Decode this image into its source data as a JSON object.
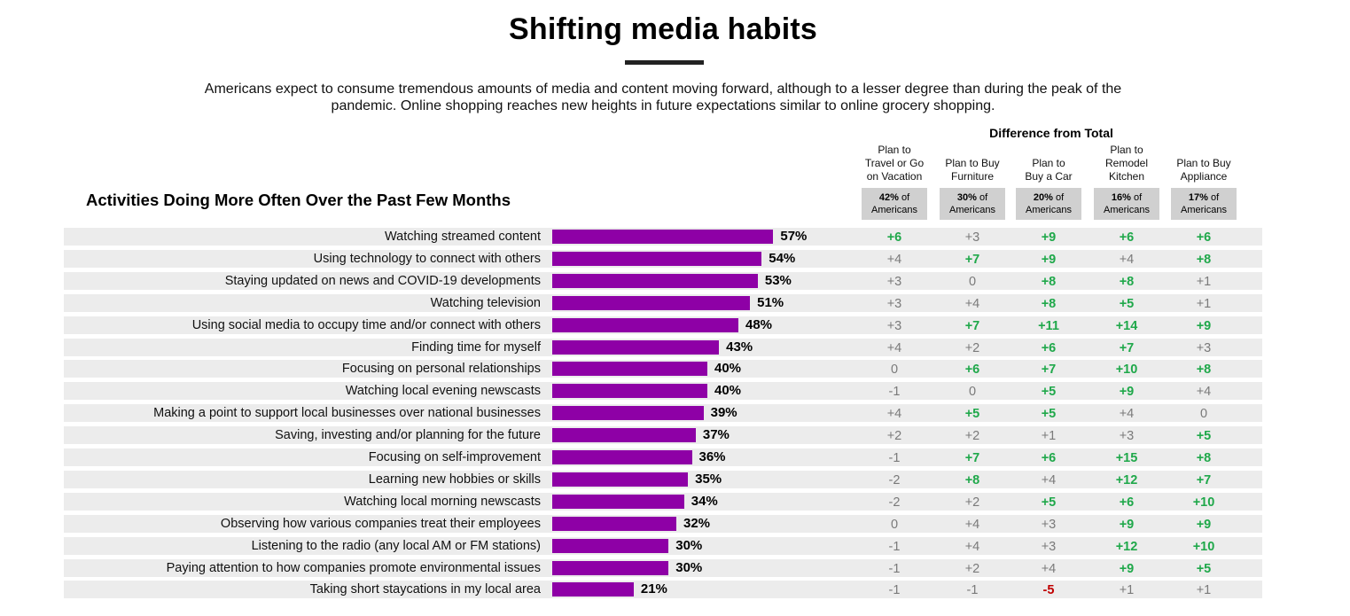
{
  "title": "Shifting media habits",
  "subtitle": "Americans expect to consume tremendous amounts of media and content moving forward, although to a lesser degree than during the peak of the pandemic. Online shopping reaches new heights in future expectations similar to online grocery shopping.",
  "section_title": "Activities Doing More Often Over the Past Few Months",
  "difference_title": "Difference from Total",
  "colors": {
    "bar": "#8e00a6",
    "positive": "#1fa84a",
    "negative": "#c00000",
    "neutral": "#7a7a7a"
  },
  "columns": [
    {
      "label_lines": [
        "Plan to",
        "Travel or Go",
        "on Vacation"
      ],
      "share_value": "42%",
      "share_suffix": " of",
      "share_unit": "Americans"
    },
    {
      "label_lines": [
        "Plan to Buy",
        "Furniture"
      ],
      "share_value": "30%",
      "share_suffix": " of",
      "share_unit": "Americans"
    },
    {
      "label_lines": [
        "Plan to",
        "Buy a Car"
      ],
      "share_value": "20%",
      "share_suffix": " of",
      "share_unit": "Americans"
    },
    {
      "label_lines": [
        "Plan to",
        "Remodel",
        "Kitchen"
      ],
      "share_value": "16%",
      "share_suffix": " of",
      "share_unit": "Americans"
    },
    {
      "label_lines": [
        "Plan to Buy",
        "Appliance"
      ],
      "share_value": "17%",
      "share_suffix": " of",
      "share_unit": "Americans"
    }
  ],
  "chart_data": {
    "type": "bar",
    "orientation": "horizontal",
    "categories": [
      "Watching streamed content",
      "Using technology to connect with others",
      "Staying updated on news and COVID-19 developments",
      "Watching television",
      "Using social media to occupy time and/or connect with others",
      "Finding time for myself",
      "Focusing on personal relationships",
      "Watching local evening newscasts",
      "Making a point to support local businesses over national businesses",
      "Saving, investing and/or planning for the future",
      "Focusing on self-improvement",
      "Learning new hobbies or skills",
      "Watching local morning newscasts",
      "Observing how various companies treat their employees",
      "Listening to the radio (any local AM or FM stations)",
      "Paying attention to how companies promote environmental issues",
      "Taking short staycations in my local area"
    ],
    "values": [
      57,
      54,
      53,
      51,
      48,
      43,
      40,
      40,
      39,
      37,
      36,
      35,
      34,
      32,
      30,
      30,
      21
    ],
    "value_labels": [
      "57%",
      "54%",
      "53%",
      "51%",
      "48%",
      "43%",
      "40%",
      "40%",
      "39%",
      "37%",
      "36%",
      "35%",
      "34%",
      "32%",
      "30%",
      "30%",
      "21%"
    ],
    "unit": "%",
    "xlim": [
      0,
      100
    ],
    "differences": [
      [
        "+6",
        "+3",
        "+9",
        "+6",
        "+6"
      ],
      [
        "+4",
        "+7",
        "+9",
        "+4",
        "+8"
      ],
      [
        "+3",
        "0",
        "+8",
        "+8",
        "+1"
      ],
      [
        "+3",
        "+4",
        "+8",
        "+5",
        "+1"
      ],
      [
        "+3",
        "+7",
        "+11",
        "+14",
        "+9"
      ],
      [
        "+4",
        "+2",
        "+6",
        "+7",
        "+3"
      ],
      [
        "0",
        "+6",
        "+7",
        "+10",
        "+8"
      ],
      [
        "-1",
        "0",
        "+5",
        "+9",
        "+4"
      ],
      [
        "+4",
        "+5",
        "+5",
        "+4",
        "0"
      ],
      [
        "+2",
        "+2",
        "+1",
        "+3",
        "+5"
      ],
      [
        "-1",
        "+7",
        "+6",
        "+15",
        "+8"
      ],
      [
        "-2",
        "+8",
        "+4",
        "+12",
        "+7"
      ],
      [
        "-2",
        "+2",
        "+5",
        "+6",
        "+10"
      ],
      [
        "0",
        "+4",
        "+3",
        "+9",
        "+9"
      ],
      [
        "-1",
        "+4",
        "+3",
        "+12",
        "+10"
      ],
      [
        "-1",
        "+2",
        "+4",
        "+9",
        "+5"
      ],
      [
        "-1",
        "-1",
        "-5",
        "+1",
        "+1"
      ]
    ],
    "differences_highlighted": [
      [
        true,
        false,
        true,
        true,
        true
      ],
      [
        false,
        true,
        true,
        false,
        true
      ],
      [
        false,
        false,
        true,
        true,
        false
      ],
      [
        false,
        false,
        true,
        true,
        false
      ],
      [
        false,
        true,
        true,
        true,
        true
      ],
      [
        false,
        false,
        true,
        true,
        false
      ],
      [
        false,
        true,
        true,
        true,
        true
      ],
      [
        false,
        false,
        true,
        true,
        false
      ],
      [
        false,
        true,
        true,
        false,
        false
      ],
      [
        false,
        false,
        false,
        false,
        true
      ],
      [
        false,
        true,
        true,
        true,
        true
      ],
      [
        false,
        true,
        false,
        true,
        true
      ],
      [
        false,
        false,
        true,
        true,
        true
      ],
      [
        false,
        false,
        false,
        true,
        true
      ],
      [
        false,
        false,
        false,
        true,
        true
      ],
      [
        false,
        false,
        false,
        true,
        true
      ],
      [
        false,
        false,
        true,
        false,
        false
      ]
    ]
  }
}
